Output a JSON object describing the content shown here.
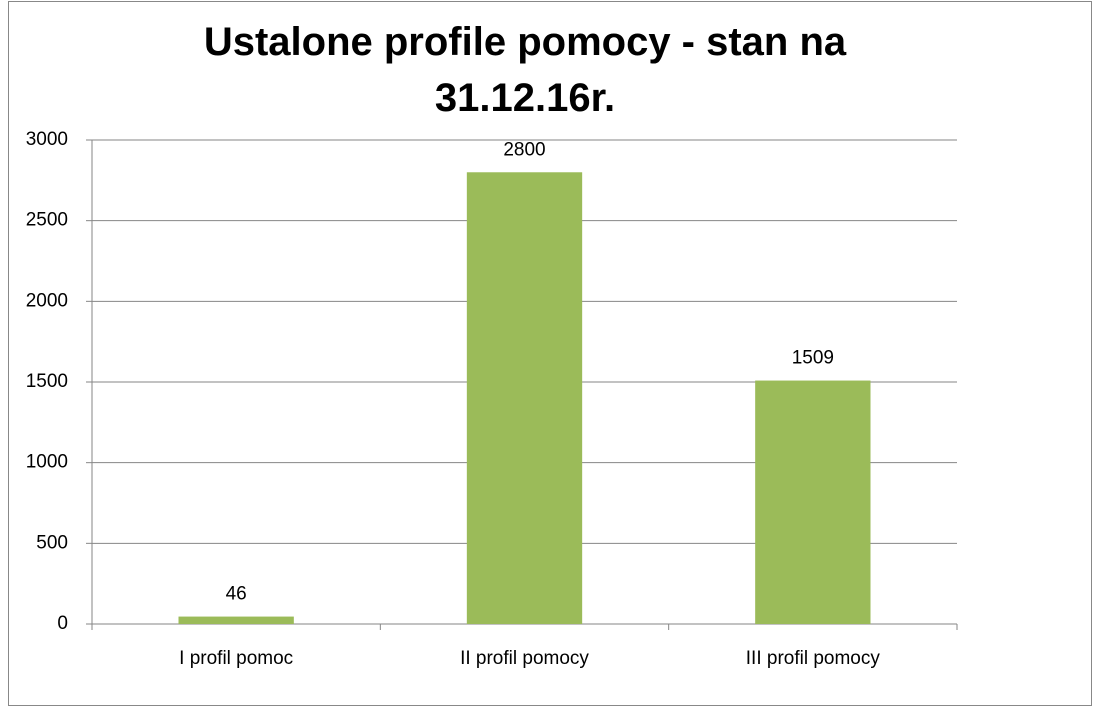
{
  "chart_data": {
    "type": "bar",
    "title": "Ustalone profile pomocy - stan na 31.12.16r.",
    "categories": [
      "I profil pomoc",
      "II profil pomocy",
      "III profil pomocy"
    ],
    "values": [
      46,
      2800,
      1509
    ],
    "color": "#9bbb59",
    "ylim": [
      0,
      3000
    ],
    "yticks": [
      0,
      500,
      1000,
      1500,
      2000,
      2500,
      3000
    ],
    "grid": true
  }
}
